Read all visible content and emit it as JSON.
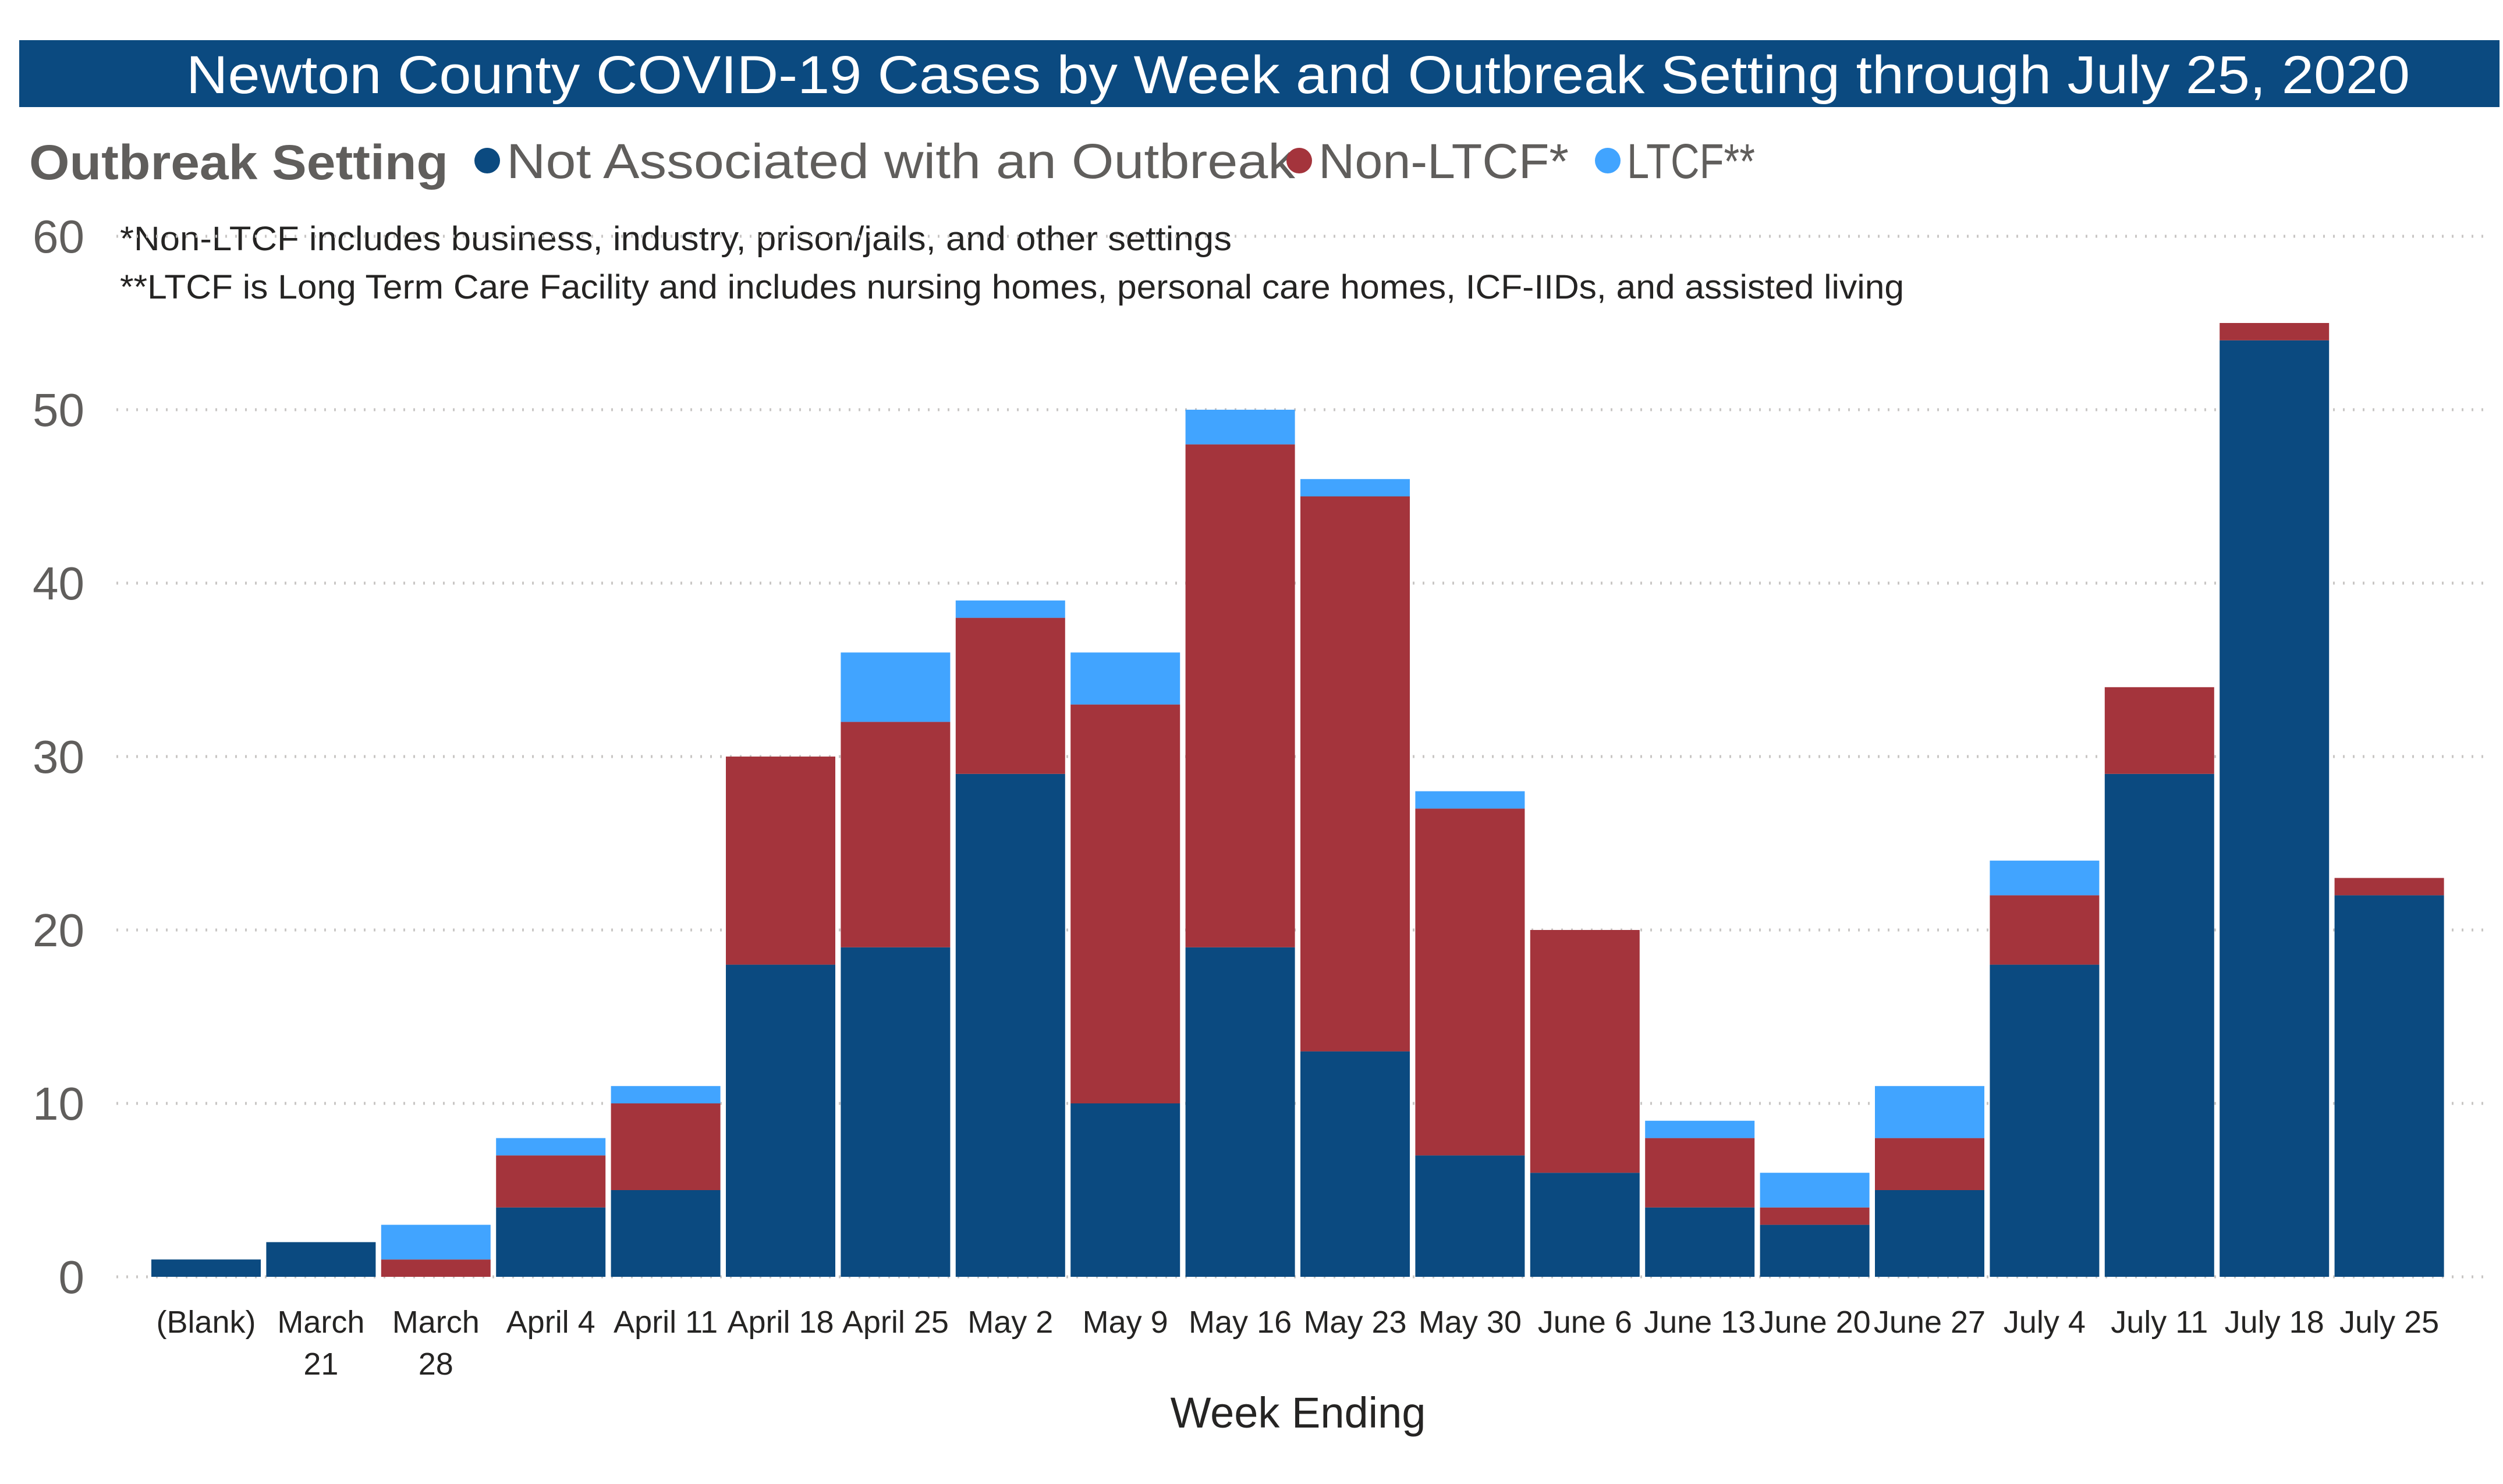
{
  "chart_data": {
    "type": "bar",
    "stacked": true,
    "title": "Newton County COVID-19 Cases by Week and Outbreak Setting through July 25, 2020",
    "legend": {
      "title": "Outbreak Setting",
      "position": "top-left"
    },
    "notes": [
      "*Non-LTCF includes business, industry, prison/jails, and other settings",
      "**LTCF is Long Term Care Facility and includes nursing homes, personal care homes, ICF-IIDs, and assisted living"
    ],
    "xlabel": "Week Ending",
    "ylabel": "",
    "ylim": [
      0,
      60
    ],
    "yticks": [
      0,
      10,
      20,
      30,
      40,
      50,
      60
    ],
    "grid": true,
    "categories": [
      "(Blank)",
      "March 21",
      "March 28",
      "April 4",
      "April 11",
      "April 18",
      "April 25",
      "May 2",
      "May 9",
      "May 16",
      "May 23",
      "May 30",
      "June 6",
      "June 13",
      "June 20",
      "June 27",
      "July 4",
      "July 11",
      "July 18",
      "July 25"
    ],
    "series": [
      {
        "name": "Not Associated with an Outbreak",
        "color": "#0b4a80",
        "values": [
          1,
          2,
          0,
          4,
          5,
          18,
          19,
          29,
          10,
          19,
          13,
          7,
          6,
          4,
          3,
          5,
          18,
          29,
          54,
          22
        ]
      },
      {
        "name": "Non-LTCF*",
        "color": "#a4343c",
        "values": [
          0,
          0,
          1,
          3,
          5,
          12,
          13,
          9,
          23,
          29,
          32,
          20,
          14,
          4,
          1,
          3,
          4,
          5,
          1,
          1
        ]
      },
      {
        "name": "LTCF**",
        "color": "#41a4ff",
        "values": [
          0,
          0,
          2,
          1,
          1,
          0,
          4,
          1,
          3,
          2,
          1,
          1,
          0,
          1,
          2,
          3,
          2,
          0,
          0,
          0
        ]
      }
    ]
  },
  "colors": {
    "title_bar": "#0b4a80",
    "gridline": "#c8c6c4"
  }
}
